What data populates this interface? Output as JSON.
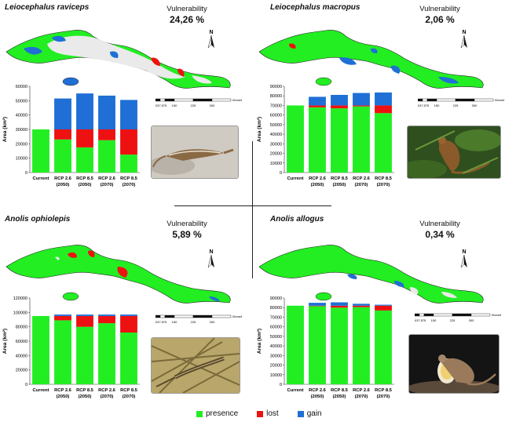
{
  "colors": {
    "presence": "#22ee22",
    "lost": "#ee1111",
    "gain": "#1f6fd6",
    "map_no_habitat": "#eaeaea"
  },
  "common": {
    "categories": [
      [
        "Current",
        ""
      ],
      [
        "RCP 2.6",
        "(2050)"
      ],
      [
        "RCP 8.5",
        "(2050)"
      ],
      [
        "RCP 2.6",
        "(2070)"
      ],
      [
        "RCP 8.5",
        "(2070)"
      ]
    ],
    "ylabel": "Area (km²)",
    "vulnerability_label": "Vulnerability",
    "scalebar_label": "Kilometers",
    "scalebar_ticks": [
      "0",
      "37.5",
      "75",
      "150",
      "225",
      "300"
    ],
    "north_label": "N"
  },
  "legend": [
    {
      "key": "presence",
      "label": "presence"
    },
    {
      "key": "lost",
      "label": "lost"
    },
    {
      "key": "gain",
      "label": "gain"
    }
  ],
  "chart_data": [
    {
      "type": "bar",
      "stacked": true,
      "species": "Leiocephalus raviceps",
      "vulnerability": "24,26 %",
      "ylim": [
        0,
        60000
      ],
      "ytick_labels": [
        "0",
        "10000",
        "20000",
        "30000",
        "40000",
        "50000",
        "60000"
      ],
      "series": [
        {
          "name": "presence",
          "values": [
            30000,
            23000,
            17500,
            22500,
            12500
          ]
        },
        {
          "name": "lost",
          "values": [
            0,
            7000,
            12500,
            7500,
            17500
          ]
        },
        {
          "name": "gain",
          "values": [
            0,
            21500,
            25000,
            23500,
            20500
          ]
        }
      ]
    },
    {
      "type": "bar",
      "stacked": true,
      "species": "Leiocephalus macropus",
      "vulnerability": "2,06 %",
      "ylim": [
        0,
        90000
      ],
      "ytick_labels": [
        "0",
        "10000",
        "20000",
        "30000",
        "40000",
        "50000",
        "60000",
        "70000",
        "80000",
        "90000"
      ],
      "series": [
        {
          "name": "presence",
          "values": [
            70000,
            68000,
            67000,
            69000,
            62000
          ]
        },
        {
          "name": "lost",
          "values": [
            0,
            2000,
            3000,
            1000,
            8000
          ]
        },
        {
          "name": "gain",
          "values": [
            0,
            9000,
            11000,
            13000,
            13500
          ]
        }
      ]
    },
    {
      "type": "bar",
      "stacked": true,
      "species": "Anolis ophiolepis",
      "vulnerability": "5,89 %",
      "ylim": [
        0,
        120000
      ],
      "ytick_labels": [
        "0",
        "20000",
        "40000",
        "60000",
        "80000",
        "100000",
        "120000"
      ],
      "series": [
        {
          "name": "presence",
          "values": [
            95000,
            89000,
            80000,
            85000,
            72000
          ]
        },
        {
          "name": "lost",
          "values": [
            0,
            6000,
            15000,
            10000,
            23000
          ]
        },
        {
          "name": "gain",
          "values": [
            0,
            2000,
            2000,
            2000,
            2000
          ]
        }
      ]
    },
    {
      "type": "bar",
      "stacked": true,
      "species": "Anolis allogus",
      "vulnerability": "0,34 %",
      "ylim": [
        0,
        90000
      ],
      "ytick_labels": [
        "0",
        "10000",
        "20000",
        "30000",
        "40000",
        "50000",
        "60000",
        "70000",
        "80000",
        "90000"
      ],
      "series": [
        {
          "name": "presence",
          "values": [
            82000,
            81500,
            80000,
            80500,
            77000
          ]
        },
        {
          "name": "lost",
          "values": [
            0,
            500,
            2000,
            1500,
            5000
          ]
        },
        {
          "name": "gain",
          "values": [
            0,
            3000,
            3500,
            2000,
            1000
          ]
        }
      ]
    }
  ]
}
